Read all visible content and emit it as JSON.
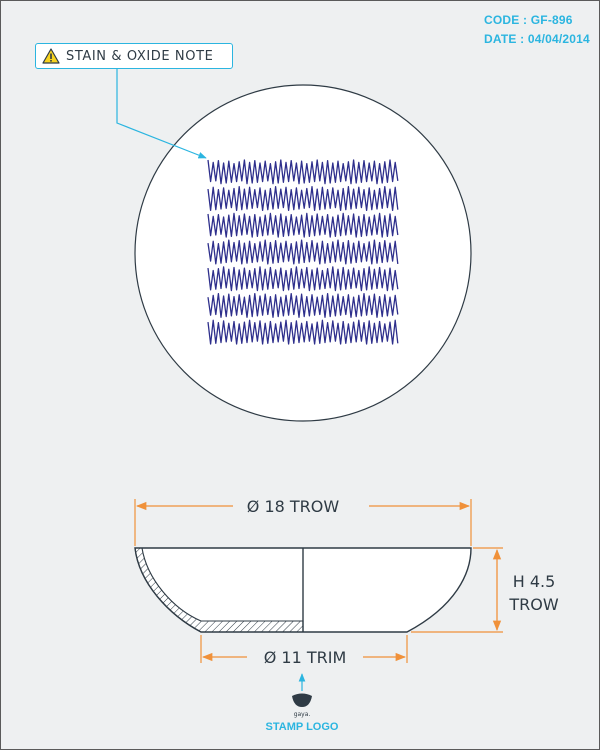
{
  "header": {
    "code_label": "CODE :",
    "code_value": "GF-896",
    "date_label": "DATE :",
    "date_value": "04/04/2014"
  },
  "note": {
    "text": "STAIN & OXIDE NOTE",
    "icon": "warning-triangle-icon"
  },
  "pattern": {
    "rows": 7,
    "color": "#2e2f8c"
  },
  "dimensions": {
    "top_diameter": "Ø 18 TROW",
    "height_line1": "H 4.5",
    "height_line2": "TROW",
    "base_diameter": "Ø 11 TRIM"
  },
  "stamp": {
    "logo_text": "gaya.",
    "label": "STAMP LOGO"
  },
  "colors": {
    "accent": "#2bb5e0",
    "dimension": "#f0913a",
    "pattern": "#2e2f8c",
    "outline": "#2f3b45"
  }
}
